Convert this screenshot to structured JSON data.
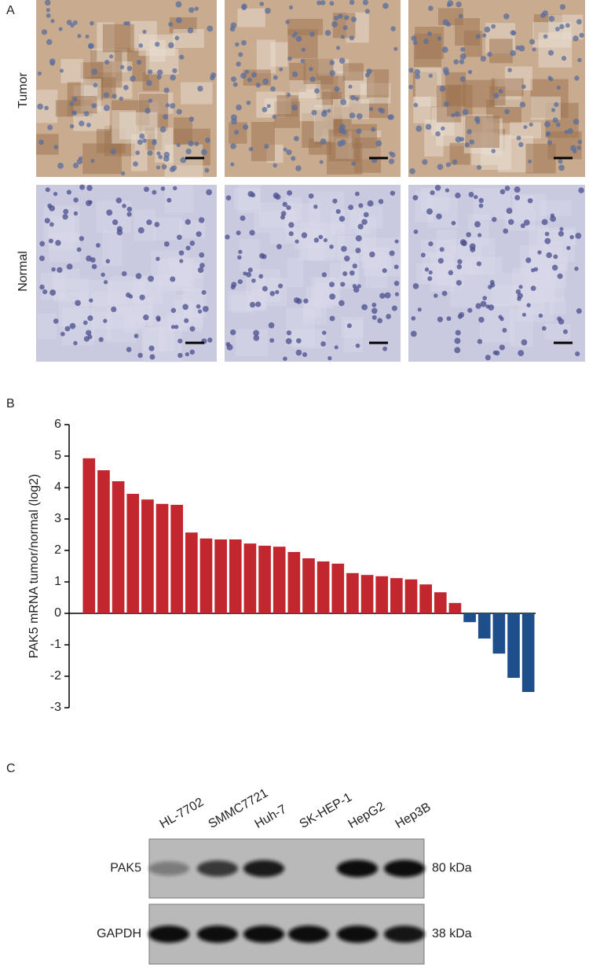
{
  "panels": {
    "a": "A",
    "b": "B",
    "c": "C"
  },
  "histology": {
    "row_labels": [
      "Tumor",
      "Normal"
    ]
  },
  "chart_data": {
    "type": "bar",
    "y_label": "PAK5 mRNA tumor/normal (log2)",
    "categories": [
      null,
      null,
      null,
      null,
      null,
      null,
      null,
      null,
      null,
      null,
      null,
      null,
      null,
      null,
      null,
      null,
      null,
      null,
      null,
      null,
      null,
      null,
      null,
      null,
      null,
      null,
      null,
      null,
      null,
      null,
      null
    ],
    "values": [
      4.93,
      4.55,
      4.2,
      3.8,
      3.62,
      3.48,
      3.45,
      2.57,
      2.38,
      2.35,
      2.35,
      2.22,
      2.15,
      2.12,
      1.95,
      1.75,
      1.65,
      1.58,
      1.28,
      1.22,
      1.18,
      1.12,
      1.08,
      0.92,
      0.67,
      0.33,
      -0.28,
      -0.8,
      -1.28,
      -2.05,
      -2.5
    ],
    "positive_color": "#c1272d",
    "negative_color": "#1f4e8c",
    "ylim": [
      -3,
      6
    ],
    "yticks": [
      -3,
      -2,
      -1,
      0,
      1,
      2,
      3,
      4,
      5,
      6
    ],
    "grid": false
  },
  "blot": {
    "lanes": [
      "HL-7702",
      "SMMC7721",
      "Huh-7",
      "SK-HEP-1",
      "HepG2",
      "Hep3B"
    ],
    "rows": [
      {
        "label": "PAK5",
        "size": "80 kDa"
      },
      {
        "label": "GAPDH",
        "size": "38 kDa"
      }
    ]
  }
}
